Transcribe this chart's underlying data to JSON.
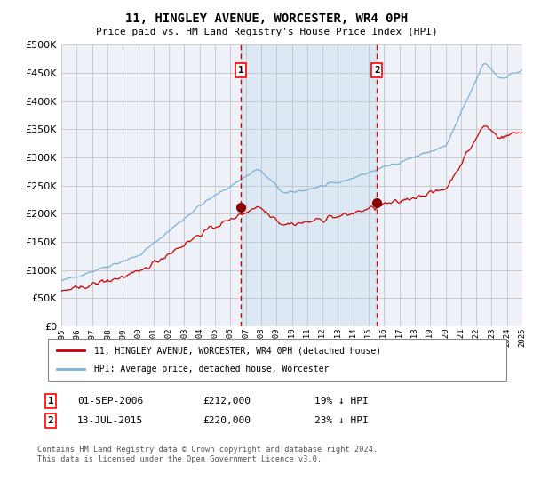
{
  "title1": "11, HINGLEY AVENUE, WORCESTER, WR4 0PH",
  "title2": "Price paid vs. HM Land Registry's House Price Index (HPI)",
  "ylim": [
    0,
    500000
  ],
  "yticks": [
    0,
    50000,
    100000,
    150000,
    200000,
    250000,
    300000,
    350000,
    400000,
    450000,
    500000
  ],
  "x_start_year": 1995,
  "x_end_year": 2025,
  "hpi_color": "#7ab0d4",
  "price_color": "#cc0000",
  "marker_color": "#8b0000",
  "dashed_color": "#cc0000",
  "shading_color": "#dce9f5",
  "background_color": "#eef2f8",
  "grid_color": "#bbbbbb",
  "sale1_year": 2006.67,
  "sale1_price": 212000,
  "sale2_year": 2015.54,
  "sale2_price": 220000,
  "legend_label1": "11, HINGLEY AVENUE, WORCESTER, WR4 0PH (detached house)",
  "legend_label2": "HPI: Average price, detached house, Worcester",
  "annotation1_date": "01-SEP-2006",
  "annotation1_price": "£212,000",
  "annotation1_hpi": "19% ↓ HPI",
  "annotation2_date": "13-JUL-2015",
  "annotation2_price": "£220,000",
  "annotation2_hpi": "23% ↓ HPI",
  "footer": "Contains HM Land Registry data © Crown copyright and database right 2024.\nThis data is licensed under the Open Government Licence v3.0."
}
